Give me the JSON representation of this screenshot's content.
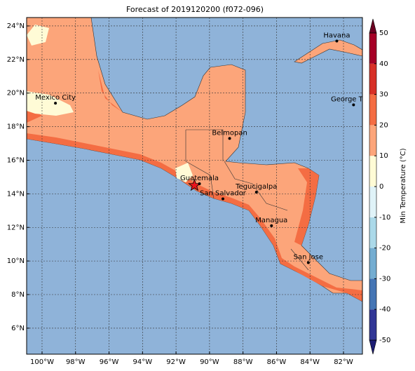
{
  "title": "Forecast of 2019120200 (f072-096)",
  "map": {
    "lon_range": [
      -100.92,
      -80.87
    ],
    "lat_range": [
      4.45,
      24.5
    ],
    "lon_ticks": [
      {
        "value": -100,
        "label": "100°W"
      },
      {
        "value": -98,
        "label": "98°W"
      },
      {
        "value": -96,
        "label": "96°W"
      },
      {
        "value": -94,
        "label": "94°W"
      },
      {
        "value": -92,
        "label": "92°W"
      },
      {
        "value": -90,
        "label": "90°W"
      },
      {
        "value": -88,
        "label": "88°W"
      },
      {
        "value": -86,
        "label": "86°W"
      },
      {
        "value": -84,
        "label": "84°W"
      },
      {
        "value": -82,
        "label": "82°W"
      }
    ],
    "lat_ticks": [
      {
        "value": 6,
        "label": "6°N"
      },
      {
        "value": 8,
        "label": "8°N"
      },
      {
        "value": 10,
        "label": "10°N"
      },
      {
        "value": 12,
        "label": "12°N"
      },
      {
        "value": 14,
        "label": "14°N"
      },
      {
        "value": 16,
        "label": "16°N"
      },
      {
        "value": 18,
        "label": "18°N"
      },
      {
        "value": 20,
        "label": "20°N"
      },
      {
        "value": 22,
        "label": "22°N"
      },
      {
        "value": 24,
        "label": "24°N"
      }
    ],
    "cities": [
      {
        "name": "Mexico City",
        "lon": -99.2,
        "lat": 19.4
      },
      {
        "name": "Havana",
        "lon": -82.4,
        "lat": 23.1
      },
      {
        "name": "George Town",
        "lon": -81.4,
        "lat": 19.3
      },
      {
        "name": "Belmopan",
        "lon": -88.8,
        "lat": 17.3
      },
      {
        "name": "Guatemala",
        "lon": -90.6,
        "lat": 14.6
      },
      {
        "name": "San Salvador",
        "lon": -89.2,
        "lat": 13.7
      },
      {
        "name": "Tegucigalpa",
        "lon": -87.2,
        "lat": 14.1
      },
      {
        "name": "Managua",
        "lon": -86.3,
        "lat": 12.1
      },
      {
        "name": "San Jose",
        "lon": -84.1,
        "lat": 9.9
      }
    ],
    "marker": {
      "lon": -90.9,
      "lat": 14.5,
      "color": "#e8141c"
    }
  },
  "colorbar": {
    "label": "Min Temperature (°C)",
    "bounds": [
      -50,
      -40,
      -30,
      -20,
      -10,
      0,
      10,
      20,
      30,
      40,
      50
    ],
    "colors": [
      "#313695",
      "#4575b4",
      "#74add1",
      "#abd9e9",
      "#e0f3f8",
      "#fffbd6",
      "#fca57a",
      "#f46d43",
      "#d73027",
      "#a50026"
    ],
    "extend_colors": [
      "#1c1c74",
      "#6b0021"
    ]
  }
}
